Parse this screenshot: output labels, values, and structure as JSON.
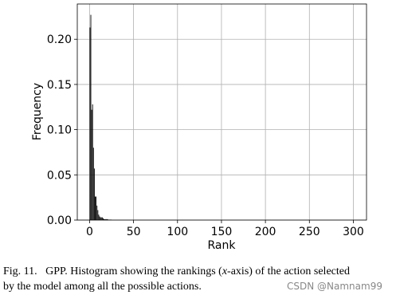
{
  "chart_data": {
    "type": "histogram",
    "xlabel": "Rank",
    "ylabel": "Frequency",
    "bins": [
      0,
      1,
      2,
      3,
      4,
      5,
      6,
      7,
      8,
      9,
      10,
      11,
      12,
      13,
      14,
      15,
      16,
      17,
      18,
      19,
      20,
      21,
      22,
      23,
      24,
      25
    ],
    "values": [
      0.213,
      0.227,
      0.122,
      0.128,
      0.08,
      0.057,
      0.026,
      0.026,
      0.016,
      0.011,
      0.006,
      0.004,
      0.003,
      0.003,
      0.003,
      0.002,
      0.001,
      0.001,
      0.001,
      0.001,
      0.001,
      0.0005,
      0.0005,
      0.0005,
      0.0005
    ],
    "color": "#000000",
    "xlim": [
      -14,
      315
    ],
    "xticks": [
      0,
      50,
      100,
      150,
      200,
      250,
      300
    ],
    "ylim": [
      0,
      0.239
    ],
    "yticks": [
      {
        "value": 0,
        "label": "0.00"
      },
      {
        "value": 0.05,
        "label": "0.05"
      },
      {
        "value": 0.1,
        "label": "0.10"
      },
      {
        "value": 0.15,
        "label": "0.15"
      },
      {
        "value": 0.2,
        "label": "0.20"
      }
    ],
    "grid": true
  },
  "caption": {
    "label": "Fig. 11.",
    "text1": "GPP. Histogram showing the rankings (",
    "italic": "x",
    "text2": "-axis) of the action selected",
    "line2": "by the model among all the possible actions.",
    "watermark": "CSDN @Namnam99"
  }
}
